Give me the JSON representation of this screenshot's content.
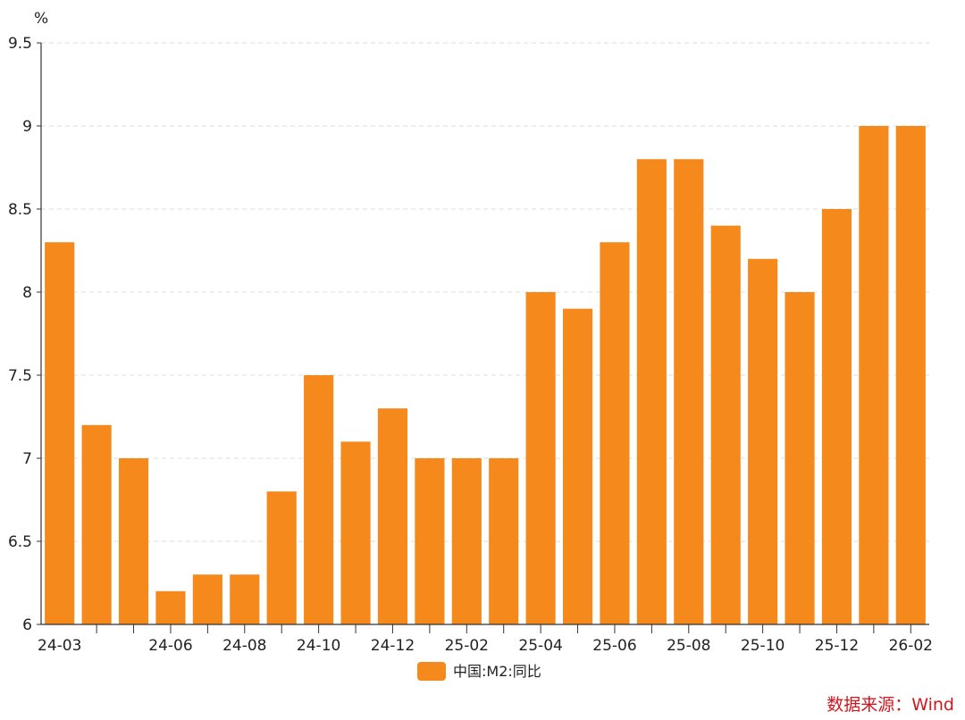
{
  "chart_data": {
    "type": "bar",
    "title": "",
    "xlabel": "",
    "ylabel": "%",
    "ylim": [
      6,
      9.5
    ],
    "yticks": [
      "6",
      "6.5",
      "7",
      "7.5",
      "8",
      "8.5",
      "9",
      "9.5"
    ],
    "grid": true,
    "legend_position": "bottom-center",
    "categories": [
      "24-03",
      "24-04",
      "24-05",
      "24-06",
      "24-07",
      "24-08",
      "24-09",
      "24-10",
      "24-11",
      "24-12",
      "25-01",
      "25-02",
      "25-03",
      "25-04",
      "25-05",
      "25-06",
      "25-07",
      "25-08",
      "25-09",
      "25-10",
      "25-11",
      "25-12",
      "26-01",
      "26-02"
    ],
    "xtick_labels": [
      "24-03",
      "",
      "",
      "24-06",
      "",
      "24-08",
      "",
      "24-10",
      "",
      "24-12",
      "",
      "25-02",
      "",
      "25-04",
      "",
      "25-06",
      "",
      "25-08",
      "",
      "25-10",
      "",
      "25-12",
      "",
      "26-02"
    ],
    "series": [
      {
        "name": "中国:M2:同比",
        "color": "#f5891b",
        "values": [
          8.3,
          7.2,
          7.0,
          6.2,
          6.3,
          6.3,
          6.8,
          7.5,
          7.1,
          7.3,
          7.0,
          7.0,
          7.0,
          8.0,
          7.9,
          8.3,
          8.8,
          8.8,
          8.4,
          8.2,
          8.0,
          8.5,
          9.0,
          9.0
        ]
      }
    ],
    "source": "数据来源：Wind",
    "source_color": "#d0171f"
  }
}
